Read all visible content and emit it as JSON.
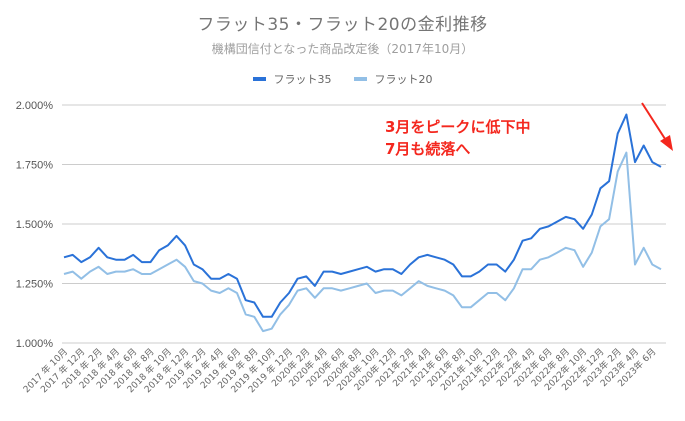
{
  "chart_data": {
    "type": "line",
    "title": "フラット35・フラット20の金利推移",
    "subtitle": "機構団信付となった商品改定後（2017年10月）",
    "xlabel": "",
    "ylabel": "",
    "ylim": [
      1.0,
      2.0
    ],
    "yticks": [
      "1.000%",
      "1.250%",
      "1.500%",
      "1.750%",
      "2.000%"
    ],
    "grid": true,
    "legend_position": "top",
    "x": [
      "2017年10月",
      "2017年11月",
      "2017年12月",
      "2018年1月",
      "2018年2月",
      "2018年3月",
      "2018年4月",
      "2018年5月",
      "2018年6月",
      "2018年7月",
      "2018年8月",
      "2018年9月",
      "2018年10月",
      "2018年11月",
      "2018年12月",
      "2019年1月",
      "2019年2月",
      "2019年3月",
      "2019年4月",
      "2019年5月",
      "2019年6月",
      "2019年7月",
      "2019年8月",
      "2019年9月",
      "2019年10月",
      "2019年11月",
      "2019年12月",
      "2020年1月",
      "2020年2月",
      "2020年3月",
      "2020年4月",
      "2020年5月",
      "2020年6月",
      "2020年7月",
      "2020年8月",
      "2020年9月",
      "2020年10月",
      "2020年11月",
      "2020年12月",
      "2021年1月",
      "2021年2月",
      "2021年3月",
      "2021年4月",
      "2021年5月",
      "2021年6月",
      "2021年7月",
      "2021年8月",
      "2021年9月",
      "2021年10月",
      "2021年11月",
      "2021年12月",
      "2022年1月",
      "2022年2月",
      "2022年3月",
      "2022年4月",
      "2022年5月",
      "2022年6月",
      "2022年7月",
      "2022年8月",
      "2022年9月",
      "2022年10月",
      "2022年11月",
      "2022年12月",
      "2023年1月",
      "2023年2月",
      "2023年3月",
      "2023年4月",
      "2023年5月",
      "2023年6月",
      "2023年7月"
    ],
    "x_tick_labels": [
      "2017 年 10月",
      "2017 年 12月",
      "2018 年 2月",
      "2018 年 4月",
      "2018 年 6月",
      "2018 年 8月",
      "2018 年 10月",
      "2018 年 12月",
      "2019 年 2月",
      "2019 年 4月",
      "2019 年 6月",
      "2019 年 8月",
      "2019 年 10月",
      "2019 年 12月",
      "2020年 2月",
      "2020年 4月",
      "2020年 6月",
      "2020年 8月",
      "2020年 10月",
      "2020年 12月",
      "2021年 2月",
      "2021年 4月",
      "2021年 6月",
      "2021年 8月",
      "2021年 10月",
      "2021年 12月",
      "2022年 2月",
      "2022年 4月",
      "2022年 6月",
      "2022年 8月",
      "2022年 10月",
      "2022年 12月",
      "2023年 2月",
      "2023年 4月",
      "2023年 6月"
    ],
    "series": [
      {
        "name": "フラット35",
        "color": "#2a72d8",
        "values": [
          1.36,
          1.37,
          1.34,
          1.36,
          1.4,
          1.36,
          1.35,
          1.35,
          1.37,
          1.34,
          1.34,
          1.39,
          1.41,
          1.45,
          1.41,
          1.33,
          1.31,
          1.27,
          1.27,
          1.29,
          1.27,
          1.18,
          1.17,
          1.11,
          1.11,
          1.17,
          1.21,
          1.27,
          1.28,
          1.24,
          1.3,
          1.3,
          1.29,
          1.3,
          1.31,
          1.32,
          1.3,
          1.31,
          1.31,
          1.29,
          1.33,
          1.36,
          1.37,
          1.36,
          1.35,
          1.33,
          1.28,
          1.28,
          1.3,
          1.33,
          1.33,
          1.3,
          1.35,
          1.43,
          1.44,
          1.48,
          1.49,
          1.51,
          1.53,
          1.52,
          1.48,
          1.54,
          1.65,
          1.68,
          1.88,
          1.96,
          1.76,
          1.83,
          1.76,
          1.74
        ]
      },
      {
        "name": "フラット20",
        "color": "#92bfe6",
        "values": [
          1.29,
          1.3,
          1.27,
          1.3,
          1.32,
          1.29,
          1.3,
          1.3,
          1.31,
          1.29,
          1.29,
          1.31,
          1.33,
          1.35,
          1.32,
          1.26,
          1.25,
          1.22,
          1.21,
          1.23,
          1.21,
          1.12,
          1.11,
          1.05,
          1.06,
          1.12,
          1.16,
          1.22,
          1.23,
          1.19,
          1.23,
          1.23,
          1.22,
          1.23,
          1.24,
          1.25,
          1.21,
          1.22,
          1.22,
          1.2,
          1.23,
          1.26,
          1.24,
          1.23,
          1.22,
          1.2,
          1.15,
          1.15,
          1.18,
          1.21,
          1.21,
          1.18,
          1.23,
          1.31,
          1.31,
          1.35,
          1.36,
          1.38,
          1.4,
          1.39,
          1.32,
          1.38,
          1.49,
          1.52,
          1.72,
          1.8,
          1.33,
          1.4,
          1.33,
          1.31
        ]
      }
    ],
    "annotations": [
      {
        "text": "3月をピークに低下中",
        "color": "#f4271e"
      },
      {
        "text": "7月も続落へ",
        "color": "#f4271e"
      },
      {
        "type": "arrow",
        "color": "#f4271e",
        "direction": "down-right"
      }
    ]
  },
  "legend": {
    "items": [
      {
        "label": "フラット35",
        "color": "#2a72d8"
      },
      {
        "label": "フラット20",
        "color": "#92bfe6"
      }
    ]
  },
  "annotation": {
    "line1": "3月をピークに低下中",
    "line2": "7月も続落へ"
  }
}
